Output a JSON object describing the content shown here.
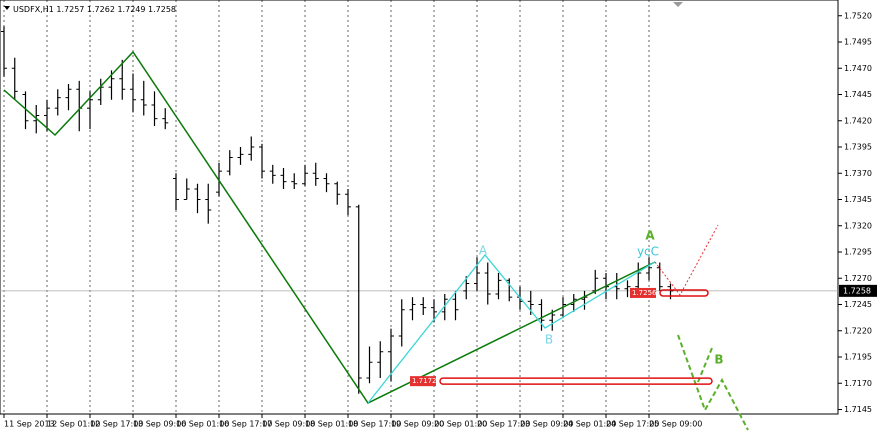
{
  "chart_data": {
    "type": "ohlc",
    "title": "USDFX,H1",
    "header_ohlc": [
      1.7257,
      1.7262,
      1.7249,
      1.7258
    ],
    "categories": [
      "11 Sep 2013",
      null,
      null,
      null,
      "12 Sep 01:00",
      null,
      null,
      null,
      "12 Sep 17:00",
      null,
      null,
      null,
      "13 Sep 09:00",
      null,
      null,
      null,
      "16 Sep 01:00",
      null,
      null,
      null,
      "16 Sep 17:00",
      null,
      null,
      null,
      "17 Sep 09:00",
      null,
      null,
      null,
      "18 Sep 01:00",
      null,
      null,
      null,
      "18 Sep 17:00",
      null,
      null,
      null,
      "19 Sep 09:00",
      null,
      null,
      null,
      "20 Sep 01:00",
      null,
      null,
      null,
      "20 Sep 17:00",
      null,
      null,
      null,
      "23 Sep 09:00",
      null,
      null,
      null,
      "24 Sep 01:00",
      null,
      null,
      null,
      "24 Sep 17:00",
      null,
      null,
      null,
      "25 Sep 09:00",
      null,
      null
    ],
    "open": [
      1.7505,
      1.747,
      1.7445,
      1.742,
      1.7425,
      1.7432,
      1.7442,
      1.745,
      1.7432,
      1.744,
      1.7452,
      1.746,
      1.745,
      1.744,
      1.7435,
      1.7422,
      1.7365,
      1.7345,
      1.7355,
      1.7345,
      1.7352,
      1.7372,
      1.7385,
      1.7388,
      1.7395,
      1.7372,
      1.7368,
      1.7362,
      1.736,
      1.737,
      1.7365,
      1.736,
      1.735,
      1.7338,
      1.7175,
      1.719,
      1.72,
      1.7215,
      1.724,
      1.7245,
      1.7242,
      1.7238,
      1.725,
      1.7258,
      1.7265,
      1.7275,
      1.7255,
      1.7268,
      1.7252,
      1.7248,
      1.7245,
      1.723,
      1.7235,
      1.7245,
      1.725,
      1.7258,
      1.727,
      1.7262,
      1.726,
      1.7262,
      1.7275,
      1.728,
      1.7262
    ],
    "high": [
      1.751,
      1.748,
      1.7448,
      1.7435,
      1.744,
      1.745,
      1.7455,
      1.7458,
      1.7448,
      1.746,
      1.7468,
      1.7478,
      1.7465,
      1.7458,
      1.7448,
      1.7432,
      1.737,
      1.7365,
      1.736,
      1.736,
      1.738,
      1.7392,
      1.7395,
      1.7405,
      1.7398,
      1.7378,
      1.7375,
      1.737,
      1.7378,
      1.738,
      1.737,
      1.7362,
      1.7355,
      1.734,
      1.7205,
      1.721,
      1.7222,
      1.725,
      1.7252,
      1.7252,
      1.725,
      1.7255,
      1.7258,
      1.7272,
      1.729,
      1.7285,
      1.7275,
      1.727,
      1.7262,
      1.7258,
      1.725,
      1.724,
      1.7252,
      1.7255,
      1.7258,
      1.7278,
      1.7275,
      1.7275,
      1.7268,
      1.7285,
      1.729,
      1.7285,
      1.7265
    ],
    "low": [
      1.7462,
      1.744,
      1.7412,
      1.7408,
      1.741,
      1.7425,
      1.743,
      1.741,
      1.7412,
      1.7435,
      1.744,
      1.744,
      1.7428,
      1.7425,
      1.7415,
      1.7412,
      1.7335,
      1.7345,
      1.7332,
      1.7322,
      1.7348,
      1.7368,
      1.7378,
      1.7382,
      1.7365,
      1.736,
      1.7355,
      1.7355,
      1.7358,
      1.7358,
      1.7352,
      1.734,
      1.733,
      1.716,
      1.717,
      1.7175,
      1.7172,
      1.7205,
      1.723,
      1.7235,
      1.7228,
      1.723,
      1.723,
      1.725,
      1.7258,
      1.7245,
      1.725,
      1.7248,
      1.724,
      1.7235,
      1.722,
      1.722,
      1.7232,
      1.7238,
      1.724,
      1.7255,
      1.725,
      1.725,
      1.7252,
      1.726,
      1.7268,
      1.7258,
      1.725
    ],
    "close": [
      1.747,
      1.7448,
      1.742,
      1.7425,
      1.7432,
      1.7442,
      1.745,
      1.7432,
      1.744,
      1.7452,
      1.746,
      1.745,
      1.744,
      1.7435,
      1.7422,
      1.7418,
      1.7345,
      1.7355,
      1.7345,
      1.7335,
      1.7372,
      1.7385,
      1.7388,
      1.7395,
      1.7372,
      1.7368,
      1.7362,
      1.736,
      1.737,
      1.7365,
      1.736,
      1.735,
      1.7338,
      1.7175,
      1.719,
      1.72,
      1.7215,
      1.724,
      1.7245,
      1.7242,
      1.7238,
      1.725,
      1.724,
      1.7265,
      1.7275,
      1.7255,
      1.7268,
      1.7252,
      1.7248,
      1.7245,
      1.723,
      1.7235,
      1.7245,
      1.725,
      1.7252,
      1.727,
      1.7262,
      1.726,
      1.7262,
      1.7275,
      1.728,
      1.7262,
      1.7258
    ],
    "color": "#000000",
    "ylim": [
      1.7135,
      1.7535
    ],
    "yticks": [
      {
        "value": 1.752,
        "label": "1.7520"
      },
      1.7495,
      {
        "value": 1.747,
        "label": "1.7470"
      },
      1.7445,
      {
        "value": 1.742,
        "label": "1.7420"
      },
      1.7395,
      {
        "value": 1.737,
        "label": "1.7370"
      },
      1.7345,
      {
        "value": 1.732,
        "label": "1.7320"
      },
      1.7295,
      {
        "value": 1.727,
        "label": "1.7270"
      },
      1.7245,
      {
        "value": 1.722,
        "label": "1.7220"
      },
      1.7195,
      {
        "value": 1.717,
        "label": "1.7170"
      },
      1.7145
    ],
    "grid": true,
    "current_price": 1.7258,
    "levels": [
      1.7172,
      1.7256
    ],
    "annotations": [
      "A",
      "B",
      "ycC",
      "A",
      "B"
    ]
  }
}
